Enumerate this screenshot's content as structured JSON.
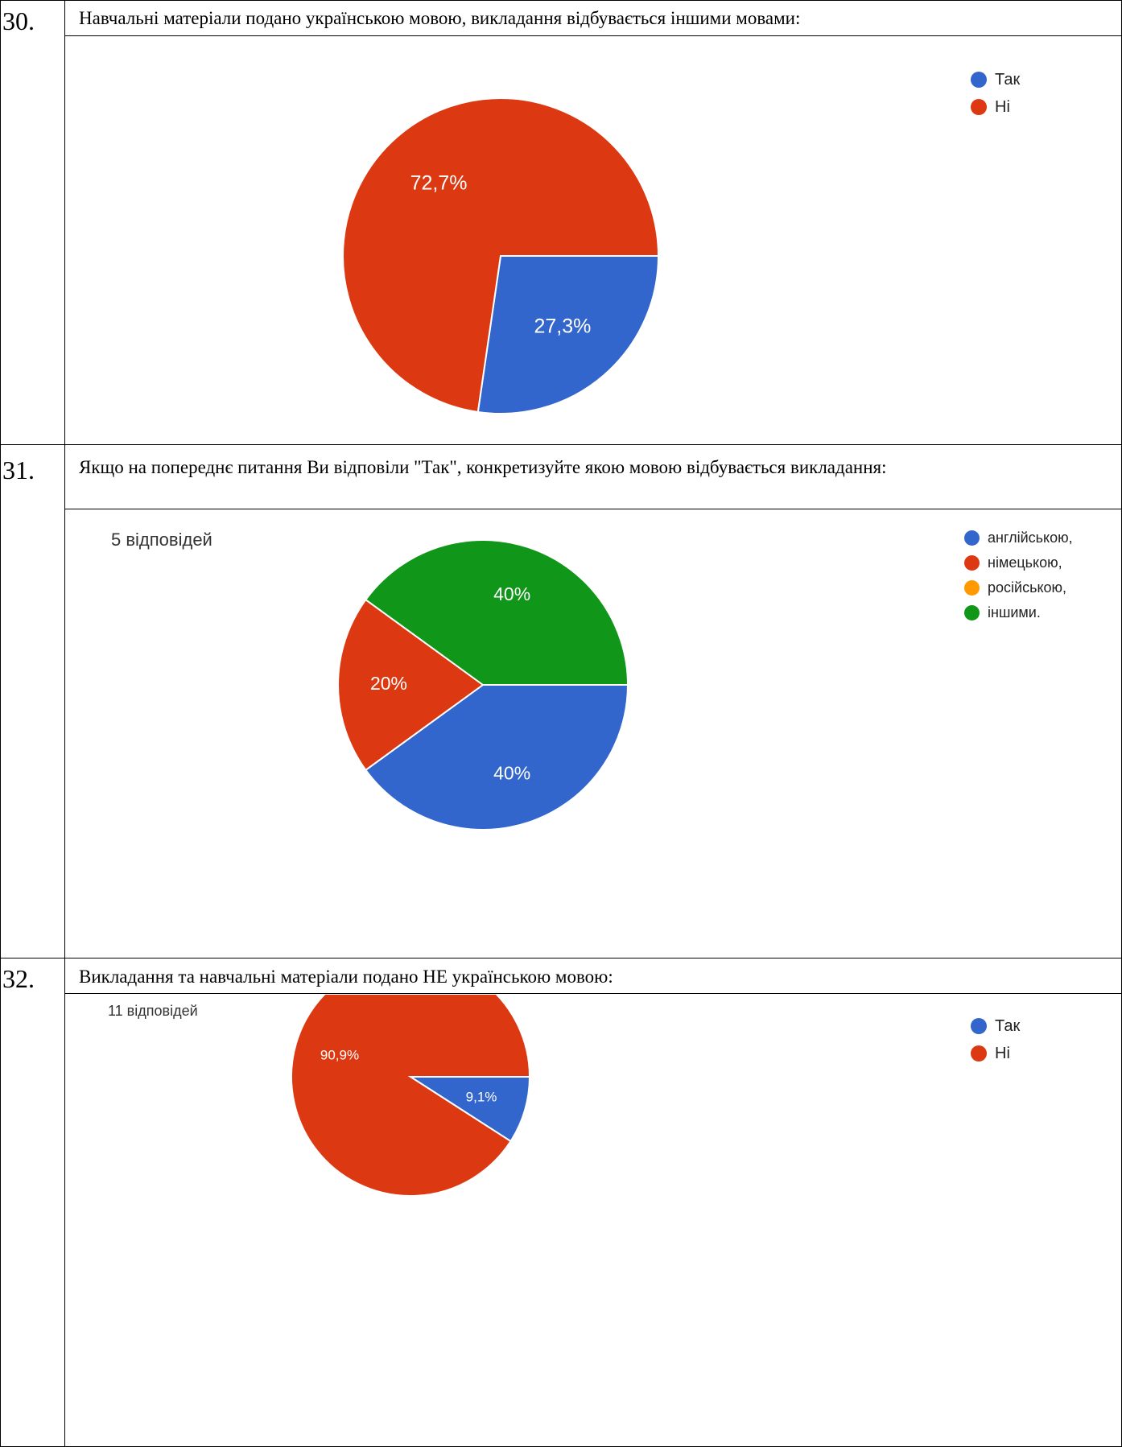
{
  "rows": [
    {
      "number": "30.",
      "question": "Навчальні матеріали подано українською мовою, викладання відбувається іншими мовами:",
      "response_count": ""
    },
    {
      "number": "31.",
      "question": "Якщо на попереднє питання Ви відповіли \"Так\", конкретизуйте якою мовою відбувається викладання:",
      "response_count": "5 відповідей"
    },
    {
      "number": "32.",
      "question": "Викладання та навчальні матеріали подано НЕ українською мовою:",
      "response_count": "11 відповідей"
    }
  ],
  "chart_data": [
    {
      "type": "pie",
      "title": "",
      "slices": [
        {
          "label": "Так",
          "value": 27.3,
          "display": "27,3%",
          "color": "#3366cc"
        },
        {
          "label": "Ні",
          "value": 72.7,
          "display": "72,7%",
          "color": "#dc3912"
        }
      ],
      "legend_position": "top-right"
    },
    {
      "type": "pie",
      "title": "",
      "slices": [
        {
          "label": "англійською,",
          "value": 40,
          "display": "40%",
          "color": "#3366cc"
        },
        {
          "label": "німецькою,",
          "value": 20,
          "display": "20%",
          "color": "#dc3912"
        },
        {
          "label": "російською,",
          "value": 0,
          "display": "",
          "color": "#ff9900"
        },
        {
          "label": "іншими.",
          "value": 40,
          "display": "40%",
          "color": "#109618"
        }
      ],
      "legend_position": "top-right"
    },
    {
      "type": "pie",
      "title": "",
      "slices": [
        {
          "label": "Так",
          "value": 9.1,
          "display": "9,1%",
          "color": "#3366cc"
        },
        {
          "label": "Ні",
          "value": 90.9,
          "display": "90,9%",
          "color": "#dc3912"
        }
      ],
      "legend_position": "top-right"
    }
  ]
}
